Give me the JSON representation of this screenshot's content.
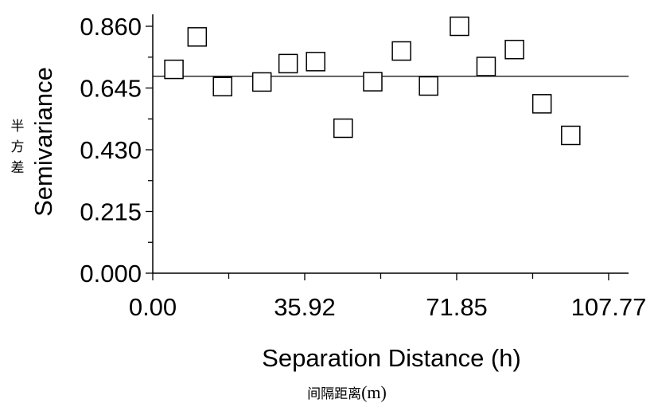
{
  "chart_data": {
    "type": "scatter",
    "title": "",
    "xlabel": "Separation Distance (h)",
    "xlabel_cn": "间隔距离",
    "xlabel_cn_unit": "(m)",
    "ylabel": "Semivariance",
    "ylabel_cn": [
      "半",
      "方",
      "差"
    ],
    "xlim": [
      0,
      116
    ],
    "ylim": [
      0,
      0.86
    ],
    "xticks": [
      0,
      35.92,
      71.85,
      107.77
    ],
    "xtick_labels": [
      "0.00",
      "35.92",
      "71.85",
      "107.77"
    ],
    "yticks": [
      0,
      0.215,
      0.43,
      0.645,
      0.86
    ],
    "ytick_labels": [
      "0.000",
      "0.215",
      "0.430",
      "0.645",
      "0.860"
    ],
    "marker": "open-square",
    "sill_line": 0.686,
    "points": [
      {
        "x": 5.0,
        "y": 0.71
      },
      {
        "x": 10.5,
        "y": 0.823
      },
      {
        "x": 16.5,
        "y": 0.65
      },
      {
        "x": 25.8,
        "y": 0.666
      },
      {
        "x": 32.0,
        "y": 0.73
      },
      {
        "x": 38.5,
        "y": 0.737
      },
      {
        "x": 45.0,
        "y": 0.505
      },
      {
        "x": 52.0,
        "y": 0.667
      },
      {
        "x": 58.8,
        "y": 0.774
      },
      {
        "x": 65.2,
        "y": 0.652
      },
      {
        "x": 72.5,
        "y": 0.86
      },
      {
        "x": 78.8,
        "y": 0.72
      },
      {
        "x": 85.5,
        "y": 0.779
      },
      {
        "x": 92.0,
        "y": 0.59
      },
      {
        "x": 98.8,
        "y": 0.48
      }
    ],
    "grid": false
  }
}
